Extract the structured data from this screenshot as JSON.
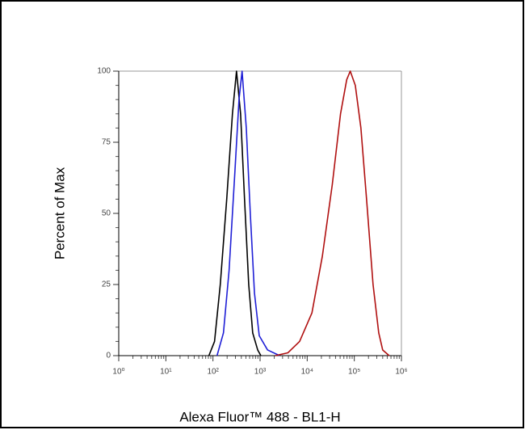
{
  "chart_data": {
    "type": "line",
    "x_label": "Alexa Fluor™ 488 - BL1-H",
    "y_label": "Percent of Max",
    "log_x": true,
    "xlim": [
      1,
      1000000
    ],
    "ylim": [
      0,
      100
    ],
    "xticks": [
      {
        "value": 1,
        "label": "10⁰"
      },
      {
        "value": 10,
        "label": "10¹"
      },
      {
        "value": 100,
        "label": "10²"
      },
      {
        "value": 1000,
        "label": "10³"
      },
      {
        "value": 10000,
        "label": "10⁴"
      },
      {
        "value": 100000,
        "label": "10⁵"
      },
      {
        "value": 1000000,
        "label": "10⁶"
      }
    ],
    "yticks": [
      0,
      25,
      50,
      75,
      100
    ],
    "series": [
      {
        "color": "#000000",
        "x": [
          82,
          108,
          143,
          196,
          259,
          316,
          386,
          468,
          574,
          697,
          890,
          1040
        ],
        "values": [
          0,
          5,
          25,
          55,
          85,
          100,
          85,
          55,
          25,
          8,
          2,
          0
        ]
      },
      {
        "color": "#1f1fd6",
        "x": [
          122,
          167,
          220,
          293,
          357,
          415,
          510,
          620,
          760,
          960,
          1440,
          2600
        ],
        "values": [
          0,
          8,
          30,
          65,
          90,
          100,
          80,
          50,
          22,
          7,
          2,
          0
        ]
      },
      {
        "color": "#b01010",
        "x": [
          2100,
          3900,
          6900,
          12600,
          21000,
          34000,
          51000,
          69000,
          82000,
          105000,
          138000,
          182000,
          250000,
          330000,
          400000,
          550000
        ],
        "values": [
          0,
          1,
          5,
          15,
          35,
          60,
          85,
          97,
          100,
          95,
          80,
          55,
          25,
          8,
          2,
          0
        ]
      }
    ]
  }
}
